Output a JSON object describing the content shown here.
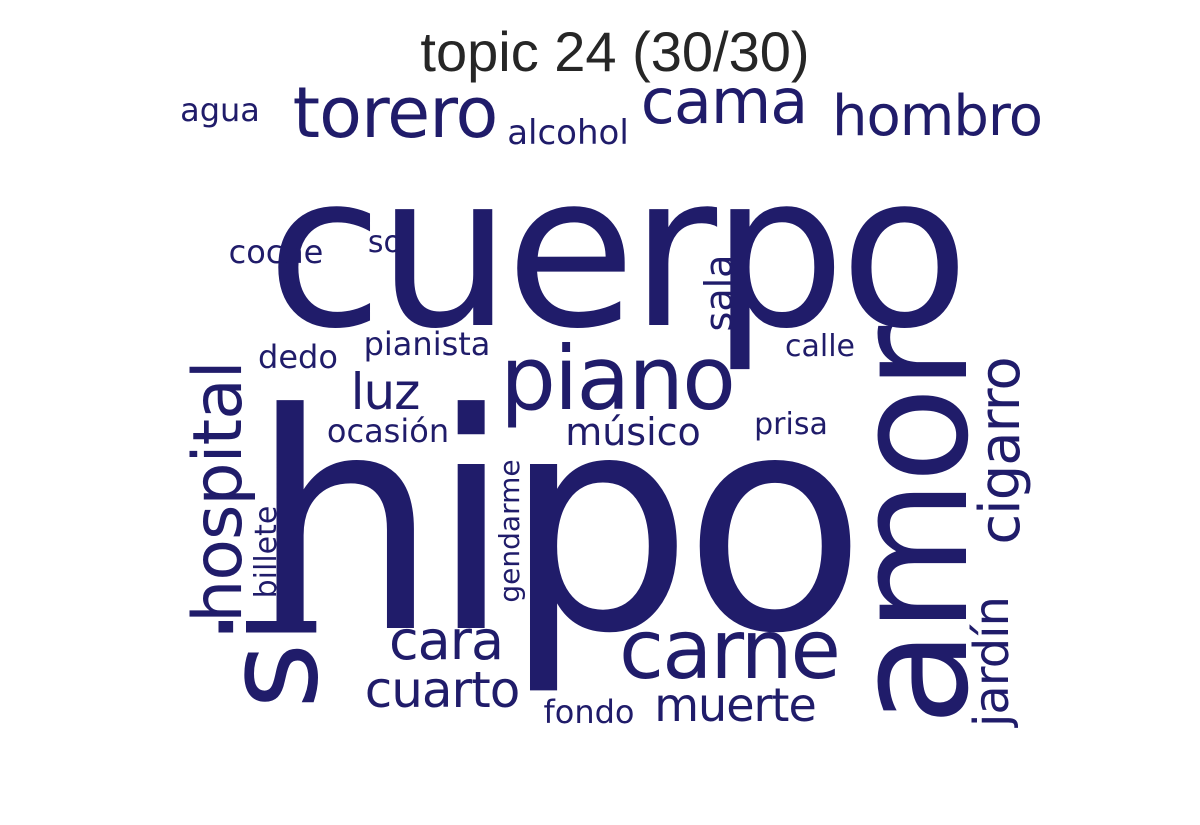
{
  "title": "topic 24 (30/30)",
  "colors": {
    "word": "#201c6a",
    "title": "#262626",
    "background": "#ffffff"
  },
  "words": [
    {
      "text": "cuerpo",
      "rotation": 0
    },
    {
      "text": "hipo",
      "rotation": 0
    },
    {
      "text": "amor",
      "rotation": -90
    },
    {
      "text": "si",
      "rotation": -90
    },
    {
      "text": "piano",
      "rotation": 0
    },
    {
      "text": "carne",
      "rotation": 0
    },
    {
      "text": "torero",
      "rotation": 0
    },
    {
      "text": "hospital",
      "rotation": -90
    },
    {
      "text": "cama",
      "rotation": 0
    },
    {
      "text": "hombro",
      "rotation": 0
    },
    {
      "text": "cigarro",
      "rotation": -90
    },
    {
      "text": "cara",
      "rotation": 0
    },
    {
      "text": "cuarto",
      "rotation": 0
    },
    {
      "text": "jardín",
      "rotation": -90
    },
    {
      "text": "luz",
      "rotation": 0
    },
    {
      "text": "muerte",
      "rotation": 0
    },
    {
      "text": "músico",
      "rotation": 0
    },
    {
      "text": "sala",
      "rotation": -90
    },
    {
      "text": "gendarme",
      "rotation": -90
    },
    {
      "text": "alcohol",
      "rotation": 0
    },
    {
      "text": "ocasión",
      "rotation": 0
    },
    {
      "text": "pianista",
      "rotation": 0
    },
    {
      "text": "coche",
      "rotation": 0
    },
    {
      "text": "dedo",
      "rotation": 0
    },
    {
      "text": "agua",
      "rotation": 0
    },
    {
      "text": "billete",
      "rotation": -90
    },
    {
      "text": "fondo",
      "rotation": 0
    },
    {
      "text": "calle",
      "rotation": 0
    },
    {
      "text": "prisa",
      "rotation": 0
    },
    {
      "text": "sol",
      "rotation": 0
    }
  ]
}
